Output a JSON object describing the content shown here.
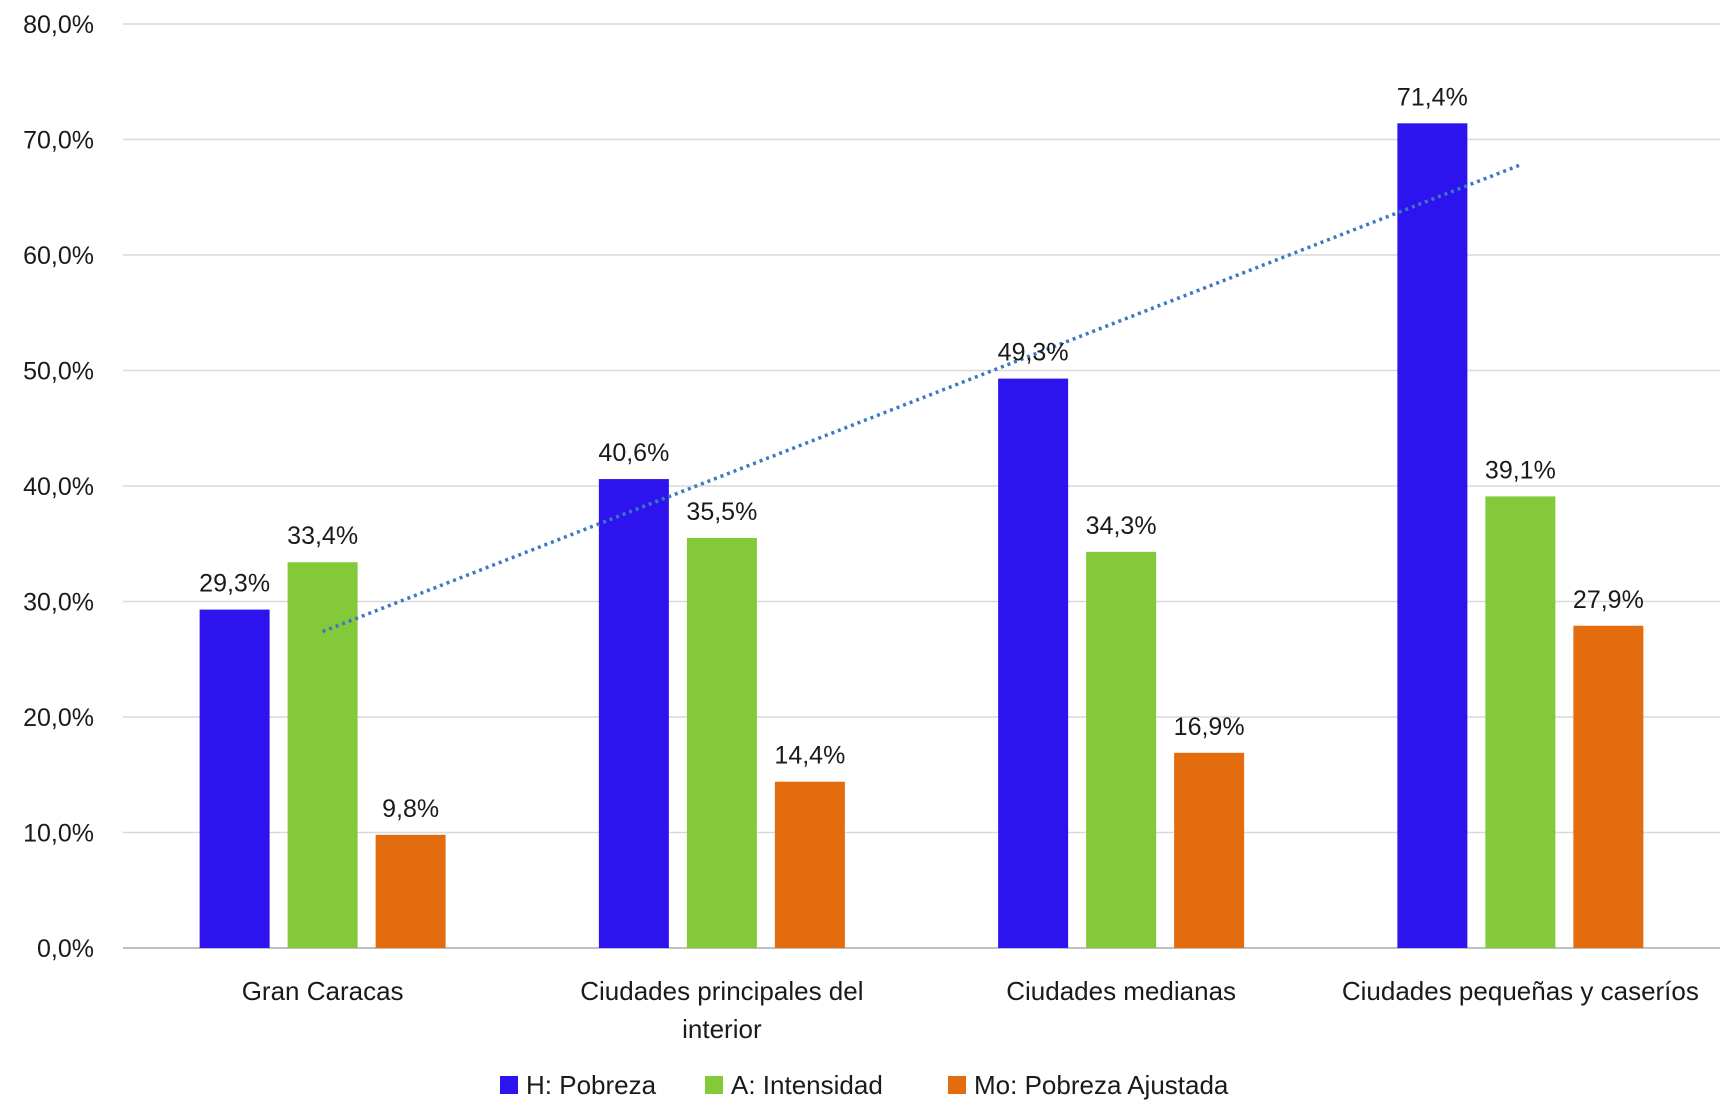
{
  "chart_data": {
    "type": "bar",
    "title": "",
    "xlabel": "",
    "ylabel": "",
    "ylim": [
      0,
      80
    ],
    "y_ticks": [
      "0,0%",
      "10,0%",
      "20,0%",
      "30,0%",
      "40,0%",
      "50,0%",
      "60,0%",
      "70,0%",
      "80,0%"
    ],
    "y_tick_values": [
      0,
      10,
      20,
      30,
      40,
      50,
      60,
      70,
      80
    ],
    "categories": [
      [
        "Gran Caracas"
      ],
      [
        "Ciudades principales del",
        "interior"
      ],
      [
        "Ciudades medianas"
      ],
      [
        "Ciudades pequeñas y caseríos"
      ]
    ],
    "series": [
      {
        "name": "H: Pobreza",
        "color": "#2d14ee",
        "values": [
          29.3,
          40.6,
          49.3,
          71.4
        ],
        "labels": [
          "29,3%",
          "40,6%",
          "49,3%",
          "71,4%"
        ]
      },
      {
        "name": "A: Intensidad",
        "color": "#84c93a",
        "values": [
          33.4,
          35.5,
          34.3,
          39.1
        ],
        "labels": [
          "33,4%",
          "35,5%",
          "34,3%",
          "39,1%"
        ]
      },
      {
        "name": "Mo: Pobreza Ajustada",
        "color": "#e36c0e",
        "values": [
          9.8,
          14.4,
          16.9,
          27.9
        ],
        "labels": [
          "9,8%",
          "14,4%",
          "16,9%",
          "27,9%"
        ]
      }
    ],
    "trendline": {
      "series": "H: Pobreza",
      "style": "dotted",
      "color": "#3d78c2",
      "start_value": 27.4,
      "end_value": 67.8
    },
    "grid": true,
    "legend": "bottom"
  }
}
